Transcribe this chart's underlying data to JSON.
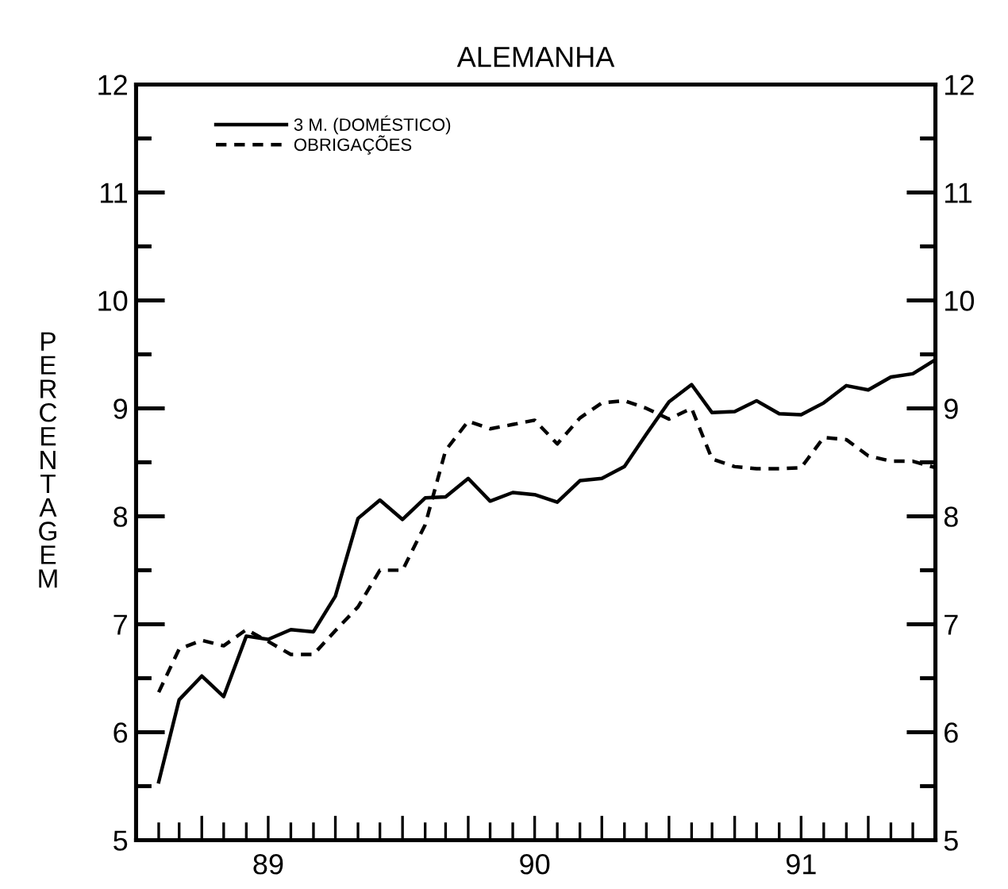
{
  "chart_data": {
    "type": "line",
    "title": "ALEMANHA",
    "ylabel": "PERCENTAGEM",
    "x": [
      "1989-02",
      "1989-03",
      "1989-04",
      "1989-05",
      "1989-06",
      "1989-07",
      "1989-08",
      "1989-09",
      "1989-10",
      "1989-11",
      "1989-12",
      "1990-01",
      "1990-02",
      "1990-03",
      "1990-04",
      "1990-05",
      "1990-06",
      "1990-07",
      "1990-08",
      "1990-09",
      "1990-10",
      "1990-11",
      "1990-12",
      "1991-01",
      "1991-02",
      "1991-03",
      "1991-04",
      "1991-05",
      "1991-06",
      "1991-07",
      "1991-08",
      "1991-09",
      "1991-10",
      "1991-11",
      "1991-12",
      "1992-01"
    ],
    "series": [
      {
        "name": "3 M. (DOMÉSTICO)",
        "color": "#000000",
        "line_style": "solid",
        "values": [
          5.54,
          6.3,
          6.52,
          6.33,
          6.89,
          6.86,
          6.95,
          6.93,
          7.26,
          7.98,
          8.15,
          7.97,
          8.17,
          8.18,
          8.35,
          8.14,
          8.22,
          8.2,
          8.13,
          8.33,
          8.35,
          8.46,
          8.76,
          9.06,
          9.22,
          8.96,
          8.97,
          9.07,
          8.95,
          8.94,
          9.05,
          9.21,
          9.17,
          9.29,
          9.32,
          9.45
        ]
      },
      {
        "name": "OBRIGAÇÕES",
        "color": "#000000",
        "line_style": "dashed",
        "values": [
          6.37,
          6.77,
          6.85,
          6.8,
          6.95,
          6.84,
          6.72,
          6.72,
          6.94,
          7.16,
          7.5,
          7.5,
          7.92,
          8.61,
          8.88,
          8.81,
          8.85,
          8.89,
          8.67,
          8.91,
          9.05,
          9.07,
          9.0,
          8.9,
          9.0,
          8.53,
          8.46,
          8.44,
          8.44,
          8.45,
          8.73,
          8.71,
          8.56,
          8.51,
          8.51,
          8.45
        ]
      }
    ],
    "xlim": [
      "1989-01",
      "1992-01"
    ],
    "xticks": [
      {
        "value": "1989-01",
        "label": null
      },
      {
        "value": "1989-02",
        "label": null
      },
      {
        "value": "1989-03",
        "label": null
      },
      {
        "value": "1989-04",
        "label": null
      },
      {
        "value": "1989-05",
        "label": null
      },
      {
        "value": "1989-06",
        "label": null
      },
      {
        "value": "1989-07",
        "label": "89"
      },
      {
        "value": "1989-08",
        "label": null
      },
      {
        "value": "1989-09",
        "label": null
      },
      {
        "value": "1989-10",
        "label": null
      },
      {
        "value": "1989-11",
        "label": null
      },
      {
        "value": "1989-12",
        "label": null
      },
      {
        "value": "1990-01",
        "label": null
      },
      {
        "value": "1990-02",
        "label": null
      },
      {
        "value": "1990-03",
        "label": null
      },
      {
        "value": "1990-04",
        "label": null
      },
      {
        "value": "1990-05",
        "label": null
      },
      {
        "value": "1990-06",
        "label": null
      },
      {
        "value": "1990-07",
        "label": "90"
      },
      {
        "value": "1990-08",
        "label": null
      },
      {
        "value": "1990-09",
        "label": null
      },
      {
        "value": "1990-10",
        "label": null
      },
      {
        "value": "1990-11",
        "label": null
      },
      {
        "value": "1990-12",
        "label": null
      },
      {
        "value": "1991-01",
        "label": null
      },
      {
        "value": "1991-02",
        "label": null
      },
      {
        "value": "1991-03",
        "label": null
      },
      {
        "value": "1991-04",
        "label": null
      },
      {
        "value": "1991-05",
        "label": null
      },
      {
        "value": "1991-06",
        "label": null
      },
      {
        "value": "1991-07",
        "label": "91"
      },
      {
        "value": "1991-08",
        "label": null
      },
      {
        "value": "1991-09",
        "label": null
      },
      {
        "value": "1991-10",
        "label": null
      },
      {
        "value": "1991-11",
        "label": null
      },
      {
        "value": "1991-12",
        "label": null
      }
    ],
    "ylim": [
      5,
      12
    ],
    "yticks": [
      5,
      {
        "value": 5.5,
        "label": null
      },
      6,
      {
        "value": 6.5,
        "label": null
      },
      7,
      {
        "value": 7.5,
        "label": null
      },
      8,
      {
        "value": 8.5,
        "label": null
      },
      9,
      {
        "value": 9.5,
        "label": null
      },
      10,
      {
        "value": 10.5,
        "label": null
      },
      11,
      {
        "value": 11.5,
        "label": null
      },
      12
    ],
    "y2lim": [
      5,
      12
    ],
    "y2ticks": [
      5,
      {
        "value": 5.5,
        "label": null
      },
      6,
      {
        "value": 6.5,
        "label": null
      },
      7,
      {
        "value": 7.5,
        "label": null
      },
      8,
      {
        "value": 8.5,
        "label": null
      },
      9,
      {
        "value": 9.5,
        "label": null
      },
      10,
      {
        "value": 10.5,
        "label": null
      },
      11,
      {
        "value": 11.5,
        "label": null
      },
      12
    ],
    "legend": "top left",
    "grid": false,
    "marker": "none"
  }
}
